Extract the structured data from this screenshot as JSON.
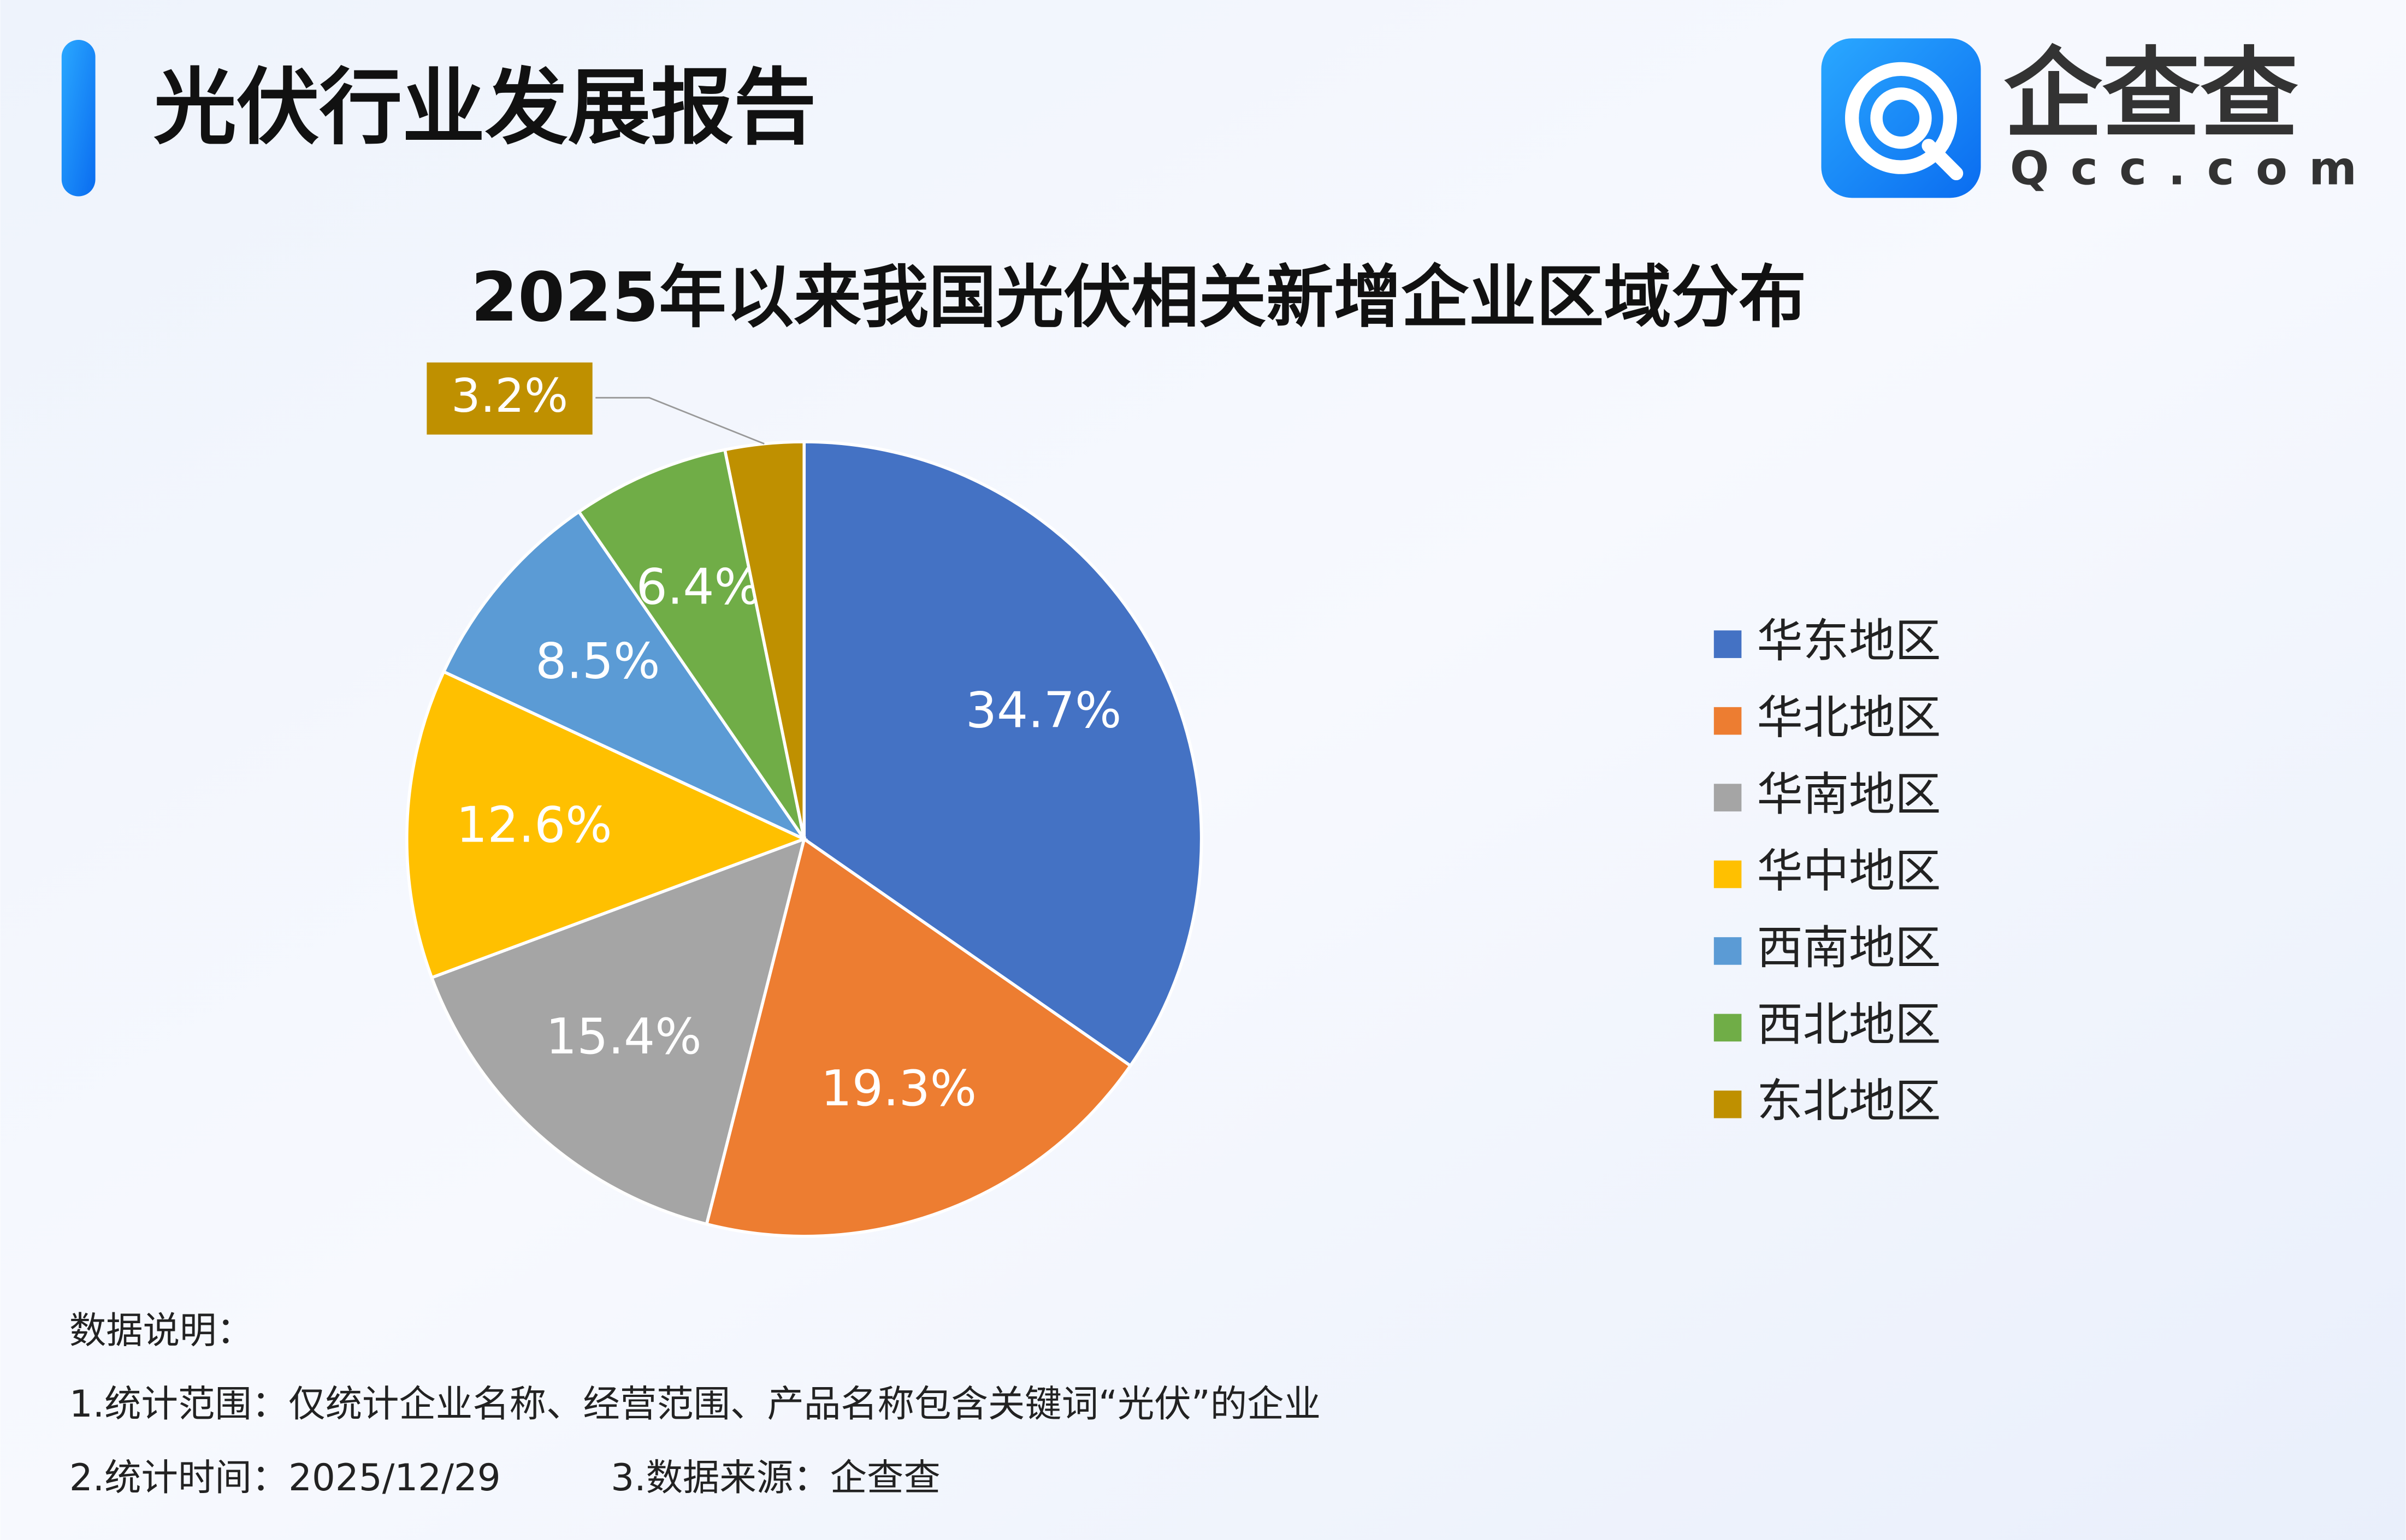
{
  "header": {
    "title": "光伏行业发展报告",
    "logo_name": "企查查",
    "logo_domain": "Qcc.com"
  },
  "chart_data": {
    "type": "pie",
    "title": "2025年以来我国光伏相关新增企业区域分布",
    "categories": [
      "华东地区",
      "华北地区",
      "华南地区",
      "华中地区",
      "西南地区",
      "西北地区",
      "东北地区"
    ],
    "values": [
      34.7,
      19.3,
      15.4,
      12.6,
      8.5,
      6.4,
      3.2
    ],
    "value_labels": [
      "34.7%",
      "19.3%",
      "15.4%",
      "12.6%",
      "8.5%",
      "6.4%",
      "3.2%"
    ],
    "colors": [
      "#4472c4",
      "#ed7d31",
      "#a5a5a5",
      "#ffc000",
      "#5b9bd5",
      "#70ad47",
      "#bf9000"
    ],
    "legend": "right"
  },
  "notes": {
    "heading": "数据说明：",
    "line1": "1.统计范围：仅统计企业名称、经营范围、产品名称包含关键词“光伏”的企业",
    "line2a": "2.统计时间：2025/12/29",
    "line2b": "3.数据来源：企查查"
  }
}
